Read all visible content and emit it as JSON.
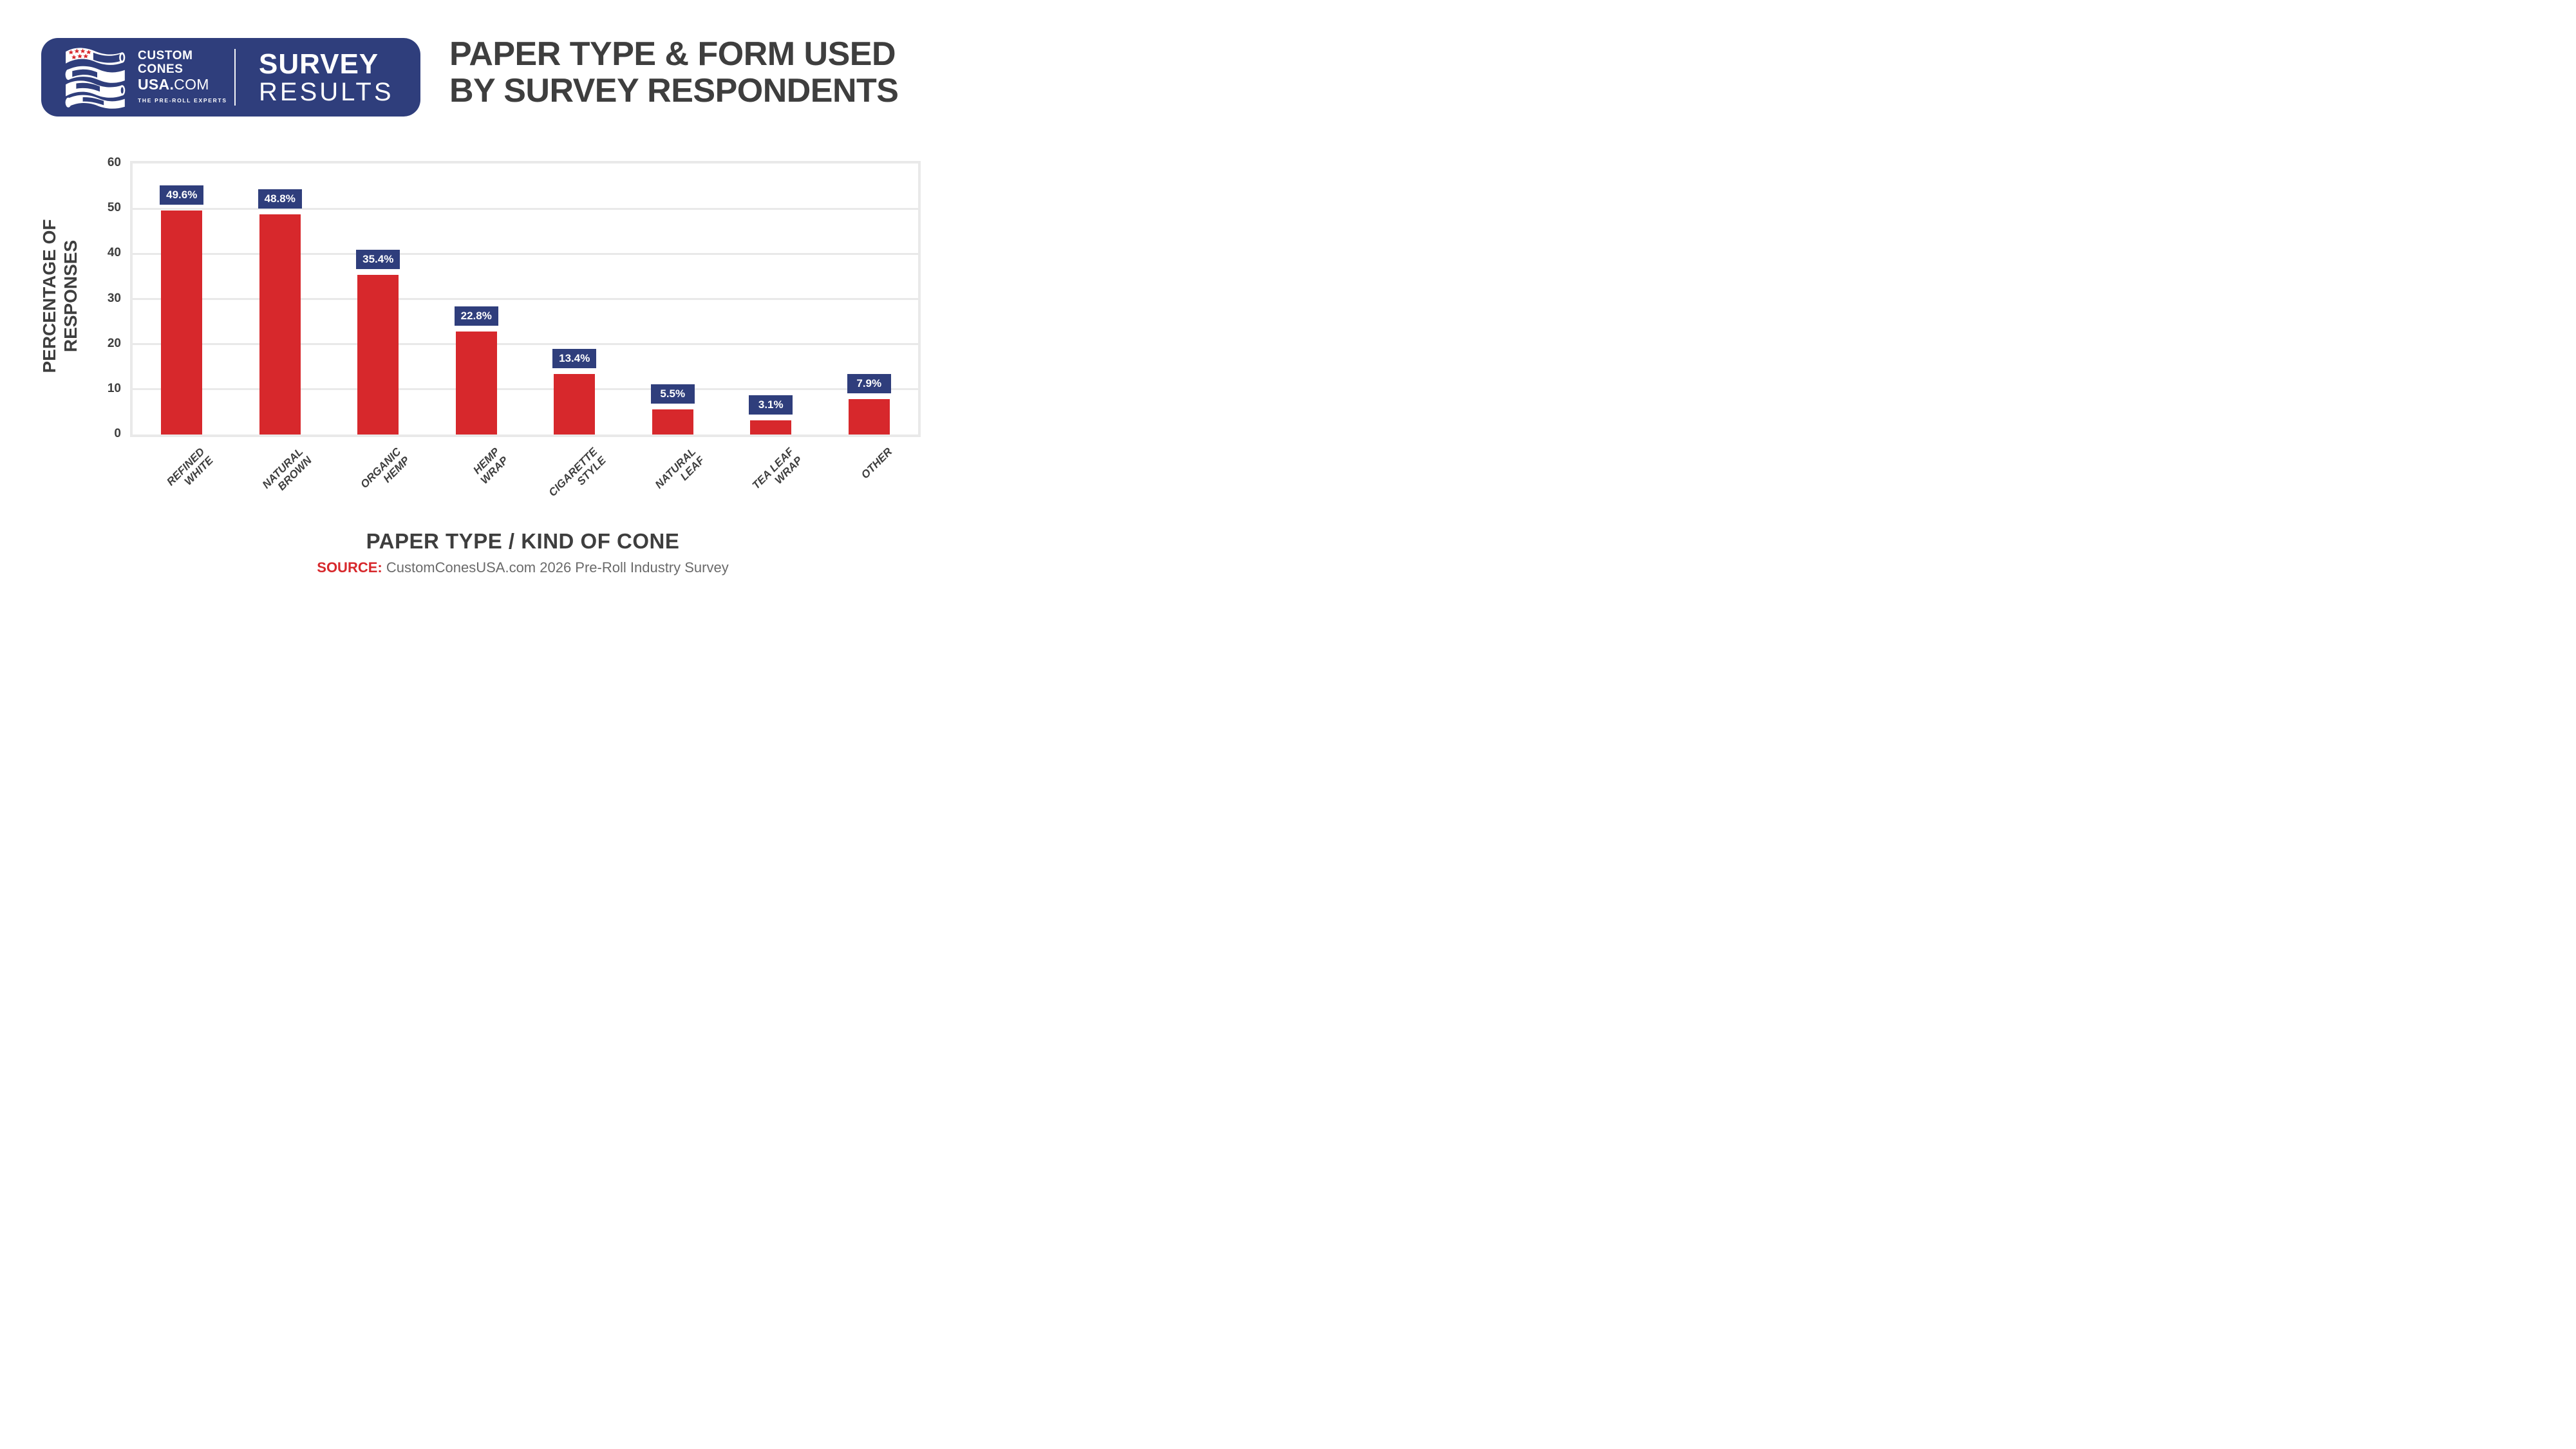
{
  "logo": {
    "bg_color": "#2F3E7C",
    "line1": "CUSTOM",
    "line2": "CONES",
    "line3_bold": "USA.",
    "line3_light": "COM",
    "tagline": "THE PRE-ROLL EXPERTS",
    "badge_line1": "SURVEY",
    "badge_line2": "RESULTS",
    "star_color": "#D7282C"
  },
  "title": {
    "line1": "PAPER TYPE & FORM USED",
    "line2": "BY SURVEY RESPONDENTS",
    "color": "#3E3E3E"
  },
  "chart_data": {
    "type": "bar",
    "title": "PAPER TYPE & FORM USED BY SURVEY RESPONDENTS",
    "categories": [
      [
        "REFINED",
        "WHITE"
      ],
      [
        "NATURAL",
        "BROWN"
      ],
      [
        "ORGANIC",
        "HEMP"
      ],
      [
        "HEMP",
        "WRAP"
      ],
      [
        "CIGARETTE",
        "STYLE"
      ],
      [
        "NATURAL",
        "LEAF"
      ],
      [
        "TEA LEAF",
        "WRAP"
      ],
      [
        "OTHER"
      ]
    ],
    "values": [
      49.6,
      48.8,
      35.4,
      22.8,
      13.4,
      5.5,
      3.1,
      7.9
    ],
    "value_labels": [
      "49.6%",
      "48.8%",
      "35.4%",
      "22.8%",
      "13.4%",
      "5.5%",
      "3.1%",
      "7.9%"
    ],
    "xlabel": "PAPER TYPE / KIND OF CONE",
    "ylabel": "PERCENTAGE OF RESPONSES",
    "ylabel_lines": [
      "PERCENTAGE OF",
      "RESPONSES"
    ],
    "ylim": [
      0,
      60
    ],
    "yticks": [
      0,
      10,
      20,
      30,
      40,
      50,
      60
    ],
    "grid": true,
    "legend": "none",
    "bar_color": "#D7282C",
    "label_box_color": "#2F3E7C",
    "label_text_color": "#FFFFFF",
    "grid_color": "#E9E9E9",
    "axis_text_color": "#3E3E3E"
  },
  "source": {
    "label": "SOURCE:",
    "text": " CustomConesUSA.com 2026 Pre-Roll Industry Survey",
    "label_color": "#D7282C",
    "text_color": "#6A6A6A"
  }
}
